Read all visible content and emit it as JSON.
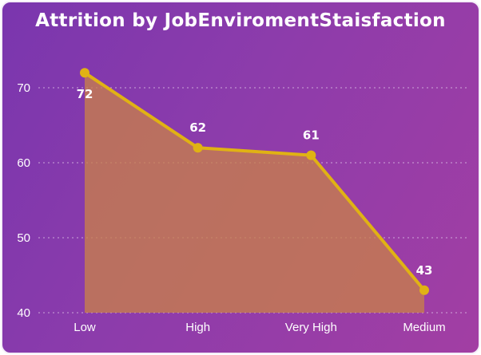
{
  "chart_data": {
    "type": "area",
    "title": "Attrition by JobEnviromentStaisfaction",
    "categories": [
      "Low",
      "High",
      "Very High",
      "Medium"
    ],
    "values": [
      72,
      62,
      61,
      43
    ],
    "data_labels": [
      "72",
      "62",
      "61",
      "43"
    ],
    "ylim": [
      40,
      72
    ],
    "y_ticks": [
      "40",
      "50",
      "60",
      "70"
    ],
    "y_tick_values": [
      40,
      50,
      60,
      70
    ],
    "grid": true,
    "legend": "none",
    "colors": {
      "line": "#e0b214",
      "fill": "#c87f4a",
      "grid": "#d9b9e3",
      "text": "#ffffff"
    }
  }
}
